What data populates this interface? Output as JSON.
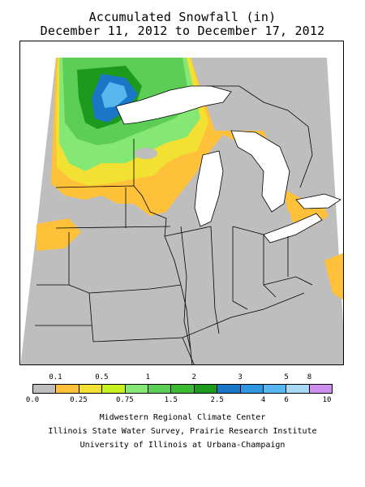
{
  "title": "Accumulated Snowfall (in)",
  "subtitle": "December 11, 2012 to December 17, 2012",
  "legend": {
    "top_ticks": [
      "0.1",
      "0.5",
      "1",
      "2",
      "3",
      "5",
      "8"
    ],
    "bottom_ticks": [
      "0.0",
      "0.25",
      "0.75",
      "1.5",
      "2.5",
      "4",
      "6",
      "10"
    ],
    "colors": [
      "#bebebe",
      "#ffc03a",
      "#f2e033",
      "#c7f021",
      "#86e874",
      "#5ccd55",
      "#3cb832",
      "#1c9a1e",
      "#1a77c7",
      "#2e97df",
      "#57b8ef",
      "#a9d8f4",
      "#cf8fee"
    ]
  },
  "credits": {
    "line1": "Midwestern Regional Climate Center",
    "line2": "Illinois State Water Survey, Prairie Research Institute",
    "line3": "University of Illinois at Urbana-Champaign"
  },
  "map": {
    "lake_color": "#ffffff",
    "no_data_color": "#ffffff",
    "border_color": "#000000"
  }
}
